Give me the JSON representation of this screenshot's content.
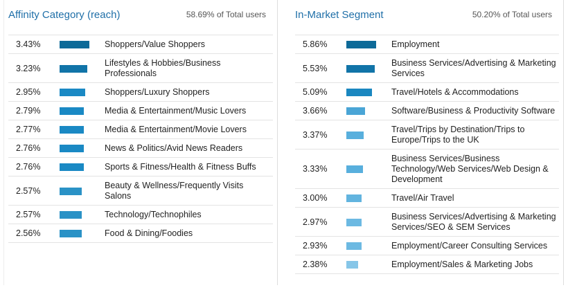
{
  "panels": [
    {
      "title": "Affinity Category (reach)",
      "total": "58.69% of Total users",
      "rows": [
        {
          "value": 3.43,
          "value_label": "3.43%",
          "label": "Shoppers/Value Shoppers",
          "color": "#0d6a98"
        },
        {
          "value": 3.23,
          "value_label": "3.23%",
          "label": "Lifestyles & Hobbies/Business Professionals",
          "color": "#1174a8"
        },
        {
          "value": 2.95,
          "value_label": "2.95%",
          "label": "Shoppers/Luxury Shoppers",
          "color": "#1a89c4"
        },
        {
          "value": 2.79,
          "value_label": "2.79%",
          "label": "Media & Entertainment/Music Lovers",
          "color": "#1a89c4"
        },
        {
          "value": 2.77,
          "value_label": "2.77%",
          "label": "Media & Entertainment/Movie Lovers",
          "color": "#1a89c4"
        },
        {
          "value": 2.76,
          "value_label": "2.76%",
          "label": "News & Politics/Avid News Readers",
          "color": "#1a89c4"
        },
        {
          "value": 2.76,
          "value_label": "2.76%",
          "label": "Sports & Fitness/Health & Fitness Buffs",
          "color": "#1a89c4"
        },
        {
          "value": 2.57,
          "value_label": "2.57%",
          "label": "Beauty & Wellness/Frequently Visits Salons",
          "color": "#2a92c6"
        },
        {
          "value": 2.57,
          "value_label": "2.57%",
          "label": "Technology/Technophiles",
          "color": "#2a92c6"
        },
        {
          "value": 2.56,
          "value_label": "2.56%",
          "label": "Food & Dining/Foodies",
          "color": "#2a92c6"
        }
      ]
    },
    {
      "title": "In-Market Segment",
      "total": "50.20% of Total users",
      "rows": [
        {
          "value": 5.86,
          "value_label": "5.86%",
          "label": "Employment",
          "color": "#0d6a98"
        },
        {
          "value": 5.53,
          "value_label": "5.53%",
          "label": "Business Services/Advertising & Marketing Services",
          "color": "#1174a8"
        },
        {
          "value": 5.09,
          "value_label": "5.09%",
          "label": "Travel/Hotels & Accommodations",
          "color": "#1a87c0"
        },
        {
          "value": 3.66,
          "value_label": "3.66%",
          "label": "Software/Business & Productivity Software",
          "color": "#4aa5d6"
        },
        {
          "value": 3.37,
          "value_label": "3.37%",
          "label": "Travel/Trips by Destination/Trips to Europe/Trips to the UK",
          "color": "#58afdd"
        },
        {
          "value": 3.33,
          "value_label": "3.33%",
          "label": "Business Services/Business Technology/Web Services/Web Design & Development",
          "color": "#58afdd"
        },
        {
          "value": 3.0,
          "value_label": "3.00%",
          "label": "Travel/Air Travel",
          "color": "#62b4df"
        },
        {
          "value": 2.97,
          "value_label": "2.97%",
          "label": "Business Services/Advertising & Marketing Services/SEO & SEM Services",
          "color": "#6cb9e2"
        },
        {
          "value": 2.93,
          "value_label": "2.93%",
          "label": "Employment/Career Consulting Services",
          "color": "#6cb9e2"
        },
        {
          "value": 2.38,
          "value_label": "2.38%",
          "label": "Employment/Sales & Marketing Jobs",
          "color": "#86c6e8"
        }
      ]
    }
  ]
}
